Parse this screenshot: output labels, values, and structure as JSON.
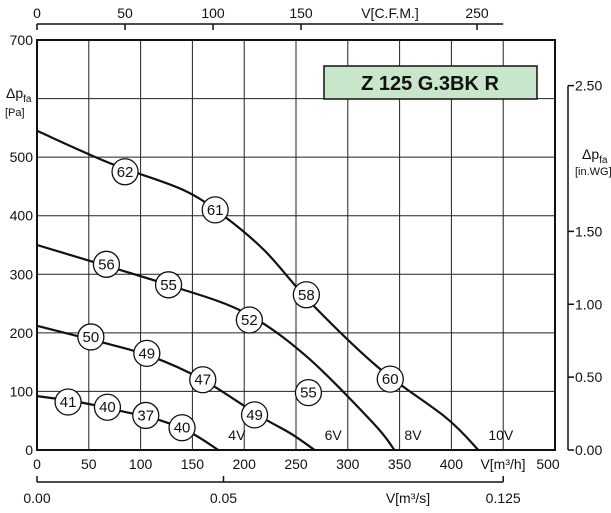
{
  "chart_data": {
    "type": "line",
    "title": "Z 125 G.3BK R",
    "title_box_color": "#c8e6c9",
    "grid": true,
    "line_color": "#111111",
    "x_bottom": {
      "unit_label": "V[m³/h]",
      "ticks": [
        "0",
        "50",
        "100",
        "150",
        "200",
        "250",
        "300",
        "350",
        "400",
        "500"
      ],
      "range": [
        0,
        500
      ]
    },
    "x_bottom2": {
      "unit_label": "V[m³/s]",
      "ticks": [
        "0.00",
        "0.05",
        "0.125"
      ],
      "tick_values": [
        0.0,
        0.05,
        0.125
      ]
    },
    "x_top": {
      "unit_label": "V[C.F.M.]",
      "ticks": [
        "0",
        "50",
        "100",
        "150",
        "250"
      ],
      "tick_values": [
        0,
        50,
        100,
        150,
        250
      ]
    },
    "y_left": {
      "label_main": "Δp",
      "label_sub": "fa",
      "unit_label": "[Pa]",
      "ticks": [
        "0",
        "100",
        "200",
        "300",
        "400",
        "500",
        "700"
      ],
      "range": [
        0,
        700
      ]
    },
    "y_right": {
      "label_main": "Δp",
      "label_sub": "fa",
      "unit_label": "[in.WG]",
      "ticks": [
        "0.00",
        "0.50",
        "1.00",
        "1.50",
        "2.50"
      ],
      "tick_values": [
        0.0,
        0.5,
        1.0,
        1.5,
        2.5
      ]
    },
    "series": [
      {
        "name": "4V",
        "points": [
          [
            0,
            92
          ],
          [
            40,
            82
          ],
          [
            80,
            67
          ],
          [
            120,
            50
          ],
          [
            150,
            28
          ],
          [
            175,
            0
          ]
        ],
        "markers": [
          {
            "x": 30,
            "y": 82,
            "label": "41"
          },
          {
            "x": 68,
            "y": 73,
            "label": "40"
          },
          {
            "x": 105,
            "y": 59,
            "label": "37"
          },
          {
            "x": 140,
            "y": 38,
            "label": "40"
          }
        ]
      },
      {
        "name": "6V",
        "points": [
          [
            0,
            212
          ],
          [
            60,
            185
          ],
          [
            110,
            160
          ],
          [
            160,
            120
          ],
          [
            215,
            58
          ],
          [
            245,
            28
          ],
          [
            268,
            0
          ]
        ],
        "markers": [
          {
            "x": 52,
            "y": 193,
            "label": "50"
          },
          {
            "x": 106,
            "y": 165,
            "label": "49"
          },
          {
            "x": 160,
            "y": 120,
            "label": "47"
          },
          {
            "x": 210,
            "y": 60,
            "label": "49"
          }
        ]
      },
      {
        "name": "8V",
        "points": [
          [
            0,
            350
          ],
          [
            60,
            318
          ],
          [
            130,
            280
          ],
          [
            200,
            235
          ],
          [
            260,
            160
          ],
          [
            325,
            45
          ],
          [
            345,
            0
          ]
        ],
        "markers": [
          {
            "x": 67,
            "y": 317,
            "label": "56"
          },
          {
            "x": 127,
            "y": 282,
            "label": "55"
          },
          {
            "x": 205,
            "y": 222,
            "label": "52"
          },
          {
            "x": 262,
            "y": 98,
            "label": "55"
          }
        ]
      },
      {
        "name": "10V",
        "points": [
          [
            0,
            545
          ],
          [
            70,
            490
          ],
          [
            140,
            445
          ],
          [
            180,
            400
          ],
          [
            220,
            340
          ],
          [
            265,
            250
          ],
          [
            330,
            140
          ],
          [
            395,
            55
          ],
          [
            426,
            0
          ]
        ],
        "markers": [
          {
            "x": 85,
            "y": 475,
            "label": "62"
          },
          {
            "x": 172,
            "y": 410,
            "label": "61"
          },
          {
            "x": 260,
            "y": 265,
            "label": "58"
          },
          {
            "x": 341,
            "y": 121,
            "label": "60"
          }
        ]
      }
    ]
  }
}
